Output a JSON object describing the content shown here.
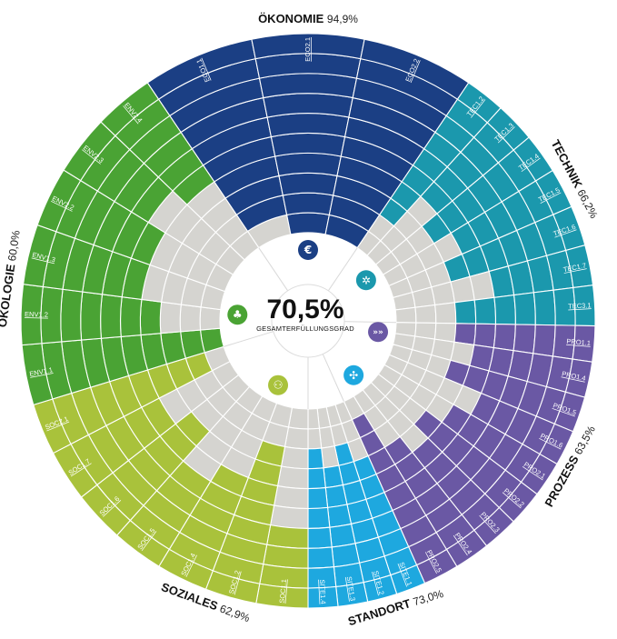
{
  "chart_data": {
    "type": "radial-bar",
    "total": {
      "value": "70,5%",
      "label": "GESAMTERFÜLLUNGSGRAD"
    },
    "max_rings": 10,
    "colors": {
      "unfilled": "#d5d4d0",
      "background": "#ffffff"
    },
    "categories": [
      {
        "name": "ÖKONOMIE",
        "percent": "94,9%",
        "color": "#1b3f84",
        "icon": "euro-icon",
        "criteria": [
          {
            "label": "ECO1.1",
            "value": 8.5
          },
          {
            "label": "ECO2.1",
            "value": 9.5
          },
          {
            "label": "ECO2.2",
            "value": 9.5
          }
        ]
      },
      {
        "name": "TECHNIK",
        "percent": "66,2%",
        "color": "#1b98ad",
        "icon": "gears-icon",
        "criteria": [
          {
            "label": "TEC1.2",
            "value": 7.6
          },
          {
            "label": "TEC1.3",
            "value": 6.0
          },
          {
            "label": "TEC1.4",
            "value": 7.0
          },
          {
            "label": "TEC1.5",
            "value": 5.6
          },
          {
            "label": "TEC1.6",
            "value": 6.6
          },
          {
            "label": "TEC1.7",
            "value": 5.0
          },
          {
            "label": "TEC3.1",
            "value": 6.8
          }
        ]
      },
      {
        "name": "PROZESS",
        "percent": "63,5%",
        "color": "#6a58a4",
        "icon": "process-icon",
        "criteria": [
          {
            "label": "PRO1.1",
            "value": 6.6
          },
          {
            "label": "PRO1.4",
            "value": 5.6
          },
          {
            "label": "PRO1.5",
            "value": 6.8
          },
          {
            "label": "PRO1.6",
            "value": 5.0
          },
          {
            "label": "PRO2.1",
            "value": 6.0
          },
          {
            "label": "PRO2.2",
            "value": 6.5
          },
          {
            "label": "PRO2.3",
            "value": 5.6
          },
          {
            "label": "PRO2.4",
            "value": 7.0
          },
          {
            "label": "PRO2.5",
            "value": 8.6
          }
        ]
      },
      {
        "name": "STANDORT",
        "percent": "73,0%",
        "color": "#1ea8df",
        "icon": "location-icon",
        "criteria": [
          {
            "label": "SITE1.1",
            "value": 6.6
          },
          {
            "label": "SITE1.2",
            "value": 7.6
          },
          {
            "label": "SITE1.3",
            "value": 7.0
          },
          {
            "label": "SITE1.4",
            "value": 8.2
          }
        ]
      },
      {
        "name": "SOZIALES",
        "percent": "62,9%",
        "color": "#a9c23b",
        "icon": "people-icon",
        "criteria": [
          {
            "label": "SOC1.1",
            "value": 4.0
          },
          {
            "label": "SOC1.2",
            "value": 8.0
          },
          {
            "label": "SOC1.4",
            "value": 6.0
          },
          {
            "label": "SOC1.5",
            "value": 5.0
          },
          {
            "label": "SOC1.6",
            "value": 7.0
          },
          {
            "label": "SOC1.7",
            "value": 6.0
          },
          {
            "label": "SOC2.1",
            "value": 8.6
          }
        ]
      },
      {
        "name": "ÖKOLOGIE",
        "percent": "60,0%",
        "color": "#4aa334",
        "icon": "tree-icon",
        "criteria": [
          {
            "label": "ENV1.1",
            "value": 10.0
          },
          {
            "label": "ENV1.2",
            "value": 6.6
          },
          {
            "label": "ENV1.3",
            "value": 5.8
          },
          {
            "label": "ENV2.2",
            "value": 6.0
          },
          {
            "label": "ENV2.3",
            "value": 5.0
          },
          {
            "label": "ENV2.4",
            "value": 6.0
          }
        ]
      }
    ]
  }
}
